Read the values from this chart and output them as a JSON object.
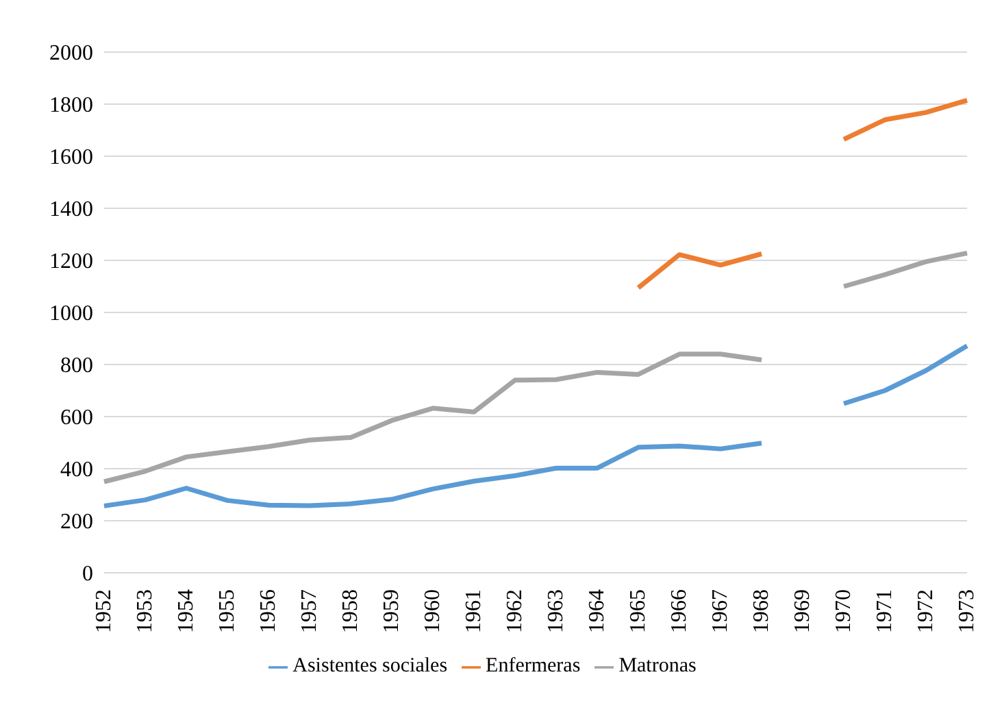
{
  "chart_data": {
    "type": "line",
    "categories": [
      "1952",
      "1953",
      "1954",
      "1955",
      "1956",
      "1957",
      "1958",
      "1959",
      "1960",
      "1961",
      "1962",
      "1963",
      "1964",
      "1965",
      "1966",
      "1967",
      "1968",
      "1969",
      "1970",
      "1971",
      "1972",
      "1973"
    ],
    "series": [
      {
        "name": "Asistentes sociales",
        "color": "#5b9bd5",
        "values": [
          257,
          280,
          325,
          278,
          260,
          258,
          265,
          282,
          322,
          352,
          373,
          402,
          402,
          482,
          487,
          476,
          498,
          null,
          650,
          700,
          777,
          872
        ]
      },
      {
        "name": "Enfermeras",
        "color": "#ed7d31",
        "values": [
          null,
          null,
          null,
          null,
          null,
          null,
          null,
          null,
          null,
          null,
          null,
          null,
          null,
          1095,
          1222,
          1182,
          1225,
          null,
          1665,
          1740,
          1768,
          1815
        ]
      },
      {
        "name": "Matronas",
        "color": "#a5a5a5",
        "values": [
          350,
          390,
          445,
          465,
          485,
          510,
          520,
          585,
          632,
          618,
          740,
          742,
          770,
          762,
          840,
          840,
          818,
          null,
          1100,
          1145,
          1195,
          1228
        ]
      }
    ],
    "ylim": [
      0,
      2000
    ],
    "yticks": [
      0,
      200,
      400,
      600,
      800,
      1000,
      1200,
      1400,
      1600,
      1800,
      2000
    ],
    "grid": "y",
    "legend": "bottom",
    "marker": "none",
    "line_style": "solid"
  }
}
